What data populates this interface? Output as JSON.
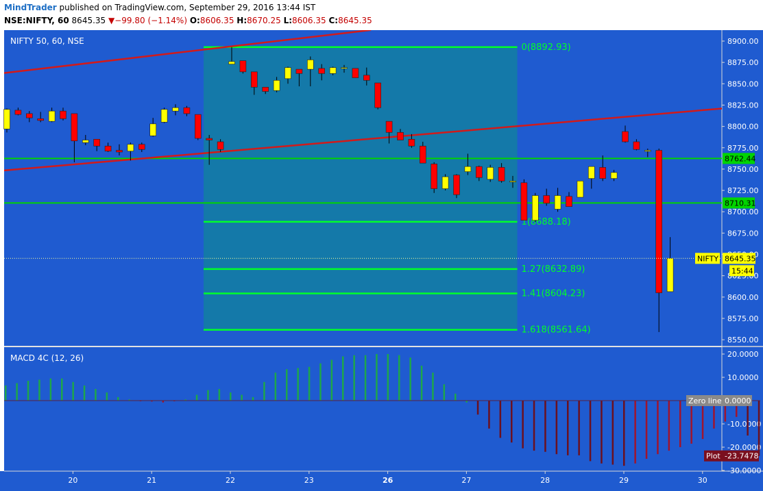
{
  "header": {
    "author": "MindTrader",
    "published": "published on TradingView.com, September 29, 2016 13:44 IST",
    "symbol": "NSE:NIFTY, 60",
    "last": "8645.35",
    "change_arrow": "▼",
    "change": "−99.80 (−1.14%)",
    "o_label": "O:",
    "o_value": "8606.35",
    "h_label": "H:",
    "h_value": "8670.25",
    "l_label": "L:",
    "l_value": "8606.35",
    "c_label": "C:",
    "c_value": "8645.35"
  },
  "colors": {
    "background": "#1f5bd0",
    "rectangle": "#1479a9",
    "up_candle": "#ffff00",
    "down_candle": "#ff0000",
    "fib": "#00ff2a",
    "hline": "#00d400",
    "channel": "#d21a1a",
    "macd_green": "#1ea64a",
    "macd_red": "#a0142e",
    "macd_darkred": "#6b1020"
  },
  "chart_data": [
    {
      "type": "candlestick",
      "title": "NIFTY 50, 60, NSE",
      "ylim": [
        8540,
        8910
      ],
      "yticks": [
        8550,
        8575,
        8600,
        8625,
        8650,
        8675,
        8700,
        8725,
        8750,
        8775,
        8800,
        8825,
        8850,
        8875,
        8900
      ],
      "ytick_labels": [
        "8550.00",
        "8575.00",
        "8600.00",
        "8625.00",
        "8650.00",
        "8675.00",
        "8700.00",
        "8725.00",
        "8750.00",
        "8775.00",
        "8800.00",
        "8825.00",
        "8850.00",
        "8875.00",
        "8900.00"
      ],
      "x_labels": [
        "20",
        "21",
        "22",
        "23",
        "26",
        "27",
        "28",
        "29",
        "30"
      ],
      "x_label_bar_index": [
        6,
        13,
        20,
        27,
        34,
        41,
        48,
        55,
        62
      ],
      "bold_x_label": "26",
      "candles": [
        {
          "o": 8797,
          "h": 8821,
          "l": 8793,
          "c": 8820
        },
        {
          "o": 8819,
          "h": 8822,
          "l": 8813,
          "c": 8814
        },
        {
          "o": 8815,
          "h": 8818,
          "l": 8805,
          "c": 8810
        },
        {
          "o": 8809,
          "h": 8817,
          "l": 8805,
          "c": 8807
        },
        {
          "o": 8806,
          "h": 8822,
          "l": 8805,
          "c": 8818
        },
        {
          "o": 8818,
          "h": 8822,
          "l": 8807,
          "c": 8809
        },
        {
          "o": 8815,
          "h": 8815,
          "l": 8758,
          "c": 8783
        },
        {
          "o": 8781,
          "h": 8790,
          "l": 8778,
          "c": 8784
        },
        {
          "o": 8785,
          "h": 8785,
          "l": 8771,
          "c": 8777
        },
        {
          "o": 8777,
          "h": 8781,
          "l": 8770,
          "c": 8771
        },
        {
          "o": 8772,
          "h": 8779,
          "l": 8766,
          "c": 8770
        },
        {
          "o": 8771,
          "h": 8781,
          "l": 8760,
          "c": 8779
        },
        {
          "o": 8779,
          "h": 8781,
          "l": 8770,
          "c": 8773
        },
        {
          "o": 8789,
          "h": 8810,
          "l": 8788,
          "c": 8803
        },
        {
          "o": 8805,
          "h": 8822,
          "l": 8804,
          "c": 8820
        },
        {
          "o": 8818,
          "h": 8826,
          "l": 8813,
          "c": 8822
        },
        {
          "o": 8822,
          "h": 8824,
          "l": 8812,
          "c": 8815
        },
        {
          "o": 8814,
          "h": 8814,
          "l": 8784,
          "c": 8786
        },
        {
          "o": 8786,
          "h": 8790,
          "l": 8755,
          "c": 8784
        },
        {
          "o": 8782,
          "h": 8785,
          "l": 8770,
          "c": 8773
        },
        {
          "o": 8873,
          "h": 8893,
          "l": 8873,
          "c": 8876
        },
        {
          "o": 8877,
          "h": 8877,
          "l": 8862,
          "c": 8864
        },
        {
          "o": 8864,
          "h": 8864,
          "l": 8837,
          "c": 8846
        },
        {
          "o": 8846,
          "h": 8846,
          "l": 8838,
          "c": 8841
        },
        {
          "o": 8842,
          "h": 8858,
          "l": 8840,
          "c": 8854
        },
        {
          "o": 8856,
          "h": 8870,
          "l": 8850,
          "c": 8869
        },
        {
          "o": 8867,
          "h": 8867,
          "l": 8847,
          "c": 8862
        },
        {
          "o": 8867,
          "h": 8882,
          "l": 8847,
          "c": 8878
        },
        {
          "o": 8868,
          "h": 8873,
          "l": 8854,
          "c": 8862
        },
        {
          "o": 8862,
          "h": 8870,
          "l": 8860,
          "c": 8869
        },
        {
          "o": 8868,
          "h": 8872,
          "l": 8863,
          "c": 8869
        },
        {
          "o": 8868,
          "h": 8868,
          "l": 8857,
          "c": 8857
        },
        {
          "o": 8860,
          "h": 8869,
          "l": 8848,
          "c": 8854
        },
        {
          "o": 8851,
          "h": 8851,
          "l": 8820,
          "c": 8822
        },
        {
          "o": 8806,
          "h": 8806,
          "l": 8780,
          "c": 8793
        },
        {
          "o": 8793,
          "h": 8797,
          "l": 8784,
          "c": 8784
        },
        {
          "o": 8785,
          "h": 8791,
          "l": 8775,
          "c": 8777
        },
        {
          "o": 8777,
          "h": 8782,
          "l": 8757,
          "c": 8757
        },
        {
          "o": 8756,
          "h": 8758,
          "l": 8722,
          "c": 8727
        },
        {
          "o": 8727,
          "h": 8744,
          "l": 8725,
          "c": 8741
        },
        {
          "o": 8743,
          "h": 8744,
          "l": 8716,
          "c": 8720
        },
        {
          "o": 8747,
          "h": 8768,
          "l": 8743,
          "c": 8753
        },
        {
          "o": 8753,
          "h": 8754,
          "l": 8736,
          "c": 8740
        },
        {
          "o": 8738,
          "h": 8755,
          "l": 8735,
          "c": 8752
        },
        {
          "o": 8752,
          "h": 8757,
          "l": 8734,
          "c": 8736
        },
        {
          "o": 8736,
          "h": 8742,
          "l": 8728,
          "c": 8736
        },
        {
          "o": 8734,
          "h": 8738,
          "l": 8690,
          "c": 8690
        },
        {
          "o": 8690,
          "h": 8722,
          "l": 8688,
          "c": 8719
        },
        {
          "o": 8719,
          "h": 8727,
          "l": 8707,
          "c": 8710
        },
        {
          "o": 8703,
          "h": 8728,
          "l": 8700,
          "c": 8719
        },
        {
          "o": 8718,
          "h": 8723,
          "l": 8706,
          "c": 8706
        },
        {
          "o": 8717,
          "h": 8736,
          "l": 8717,
          "c": 8736
        },
        {
          "o": 8739,
          "h": 8753,
          "l": 8727,
          "c": 8753
        },
        {
          "o": 8752,
          "h": 8766,
          "l": 8736,
          "c": 8739
        },
        {
          "o": 8739,
          "h": 8749,
          "l": 8736,
          "c": 8746
        },
        {
          "o": 8794,
          "h": 8801,
          "l": 8781,
          "c": 8782
        },
        {
          "o": 8782,
          "h": 8785,
          "l": 8772,
          "c": 8773
        },
        {
          "o": 8772,
          "h": 8774,
          "l": 8764,
          "c": 8772
        },
        {
          "o": 8772,
          "h": 8774,
          "l": 8605,
          "c": 8605
        },
        {
          "o": 8606.35,
          "h": 8670.25,
          "l": 8606.35,
          "c": 8645.35
        }
      ],
      "extra_wicks": [
        {
          "bar": 58,
          "low": 8559
        }
      ],
      "fib_levels": [
        {
          "label": "0(8892.93)",
          "value": 8892.93
        },
        {
          "label": "1(8688.18)",
          "value": 8688.18
        },
        {
          "label": "1.27(8632.89)",
          "value": 8632.89
        },
        {
          "label": "1.41(8604.23)",
          "value": 8604.23
        },
        {
          "label": "1.618(8561.64)",
          "value": 8561.64
        }
      ],
      "fib_zone": {
        "from_bar": 17.5,
        "to_bar": 45.4,
        "top": 8892.93,
        "bottom": 8561.64
      },
      "horizontal_lines": [
        {
          "value": 8762.44,
          "label": "8762.44"
        },
        {
          "value": 8710.31,
          "label": "8710.31"
        }
      ],
      "channel_lines": [
        {
          "from": {
            "bar": 0,
            "value": 8862
          },
          "to": {
            "bar": 33,
            "value": 8913
          }
        },
        {
          "from": {
            "bar": 0,
            "value": 8748
          },
          "to": {
            "bar": 66,
            "value": 8823
          }
        }
      ],
      "last_price": {
        "value": 8645.35,
        "tag": "NIFTY",
        "label": "8645.35",
        "countdown": "15:44"
      }
    },
    {
      "type": "bar",
      "title": "MACD 4C (12, 26)",
      "ylim": [
        -30,
        22
      ],
      "yticks": [
        20,
        10,
        -10,
        -20,
        -30
      ],
      "ytick_labels": [
        "20.0000",
        "10.0000",
        "-10.0000",
        "-20.0000",
        "-30.0000"
      ],
      "zero_line": {
        "tag": "Zero line",
        "value": "0.0000"
      },
      "plot_label": {
        "tag": "Plot",
        "value": "-23.7478"
      },
      "values": [
        6.5,
        7.5,
        8.5,
        9,
        9.5,
        9.5,
        8,
        6.5,
        5,
        3.5,
        1.5,
        0.5,
        -0.2,
        -0.4,
        -0.8,
        -0.3,
        0.5,
        2.5,
        4.5,
        5,
        3.5,
        2.5,
        1.5,
        8,
        12,
        13.5,
        14,
        14.5,
        16,
        17.5,
        19,
        19.5,
        19.5,
        20,
        20,
        19.5,
        18.5,
        15,
        12,
        7,
        3,
        -0.8,
        -6,
        -12,
        -16,
        -18,
        -20.5,
        -21.5,
        -22,
        -23,
        -23.5,
        -23.5,
        -26,
        -27,
        -27.5,
        -28,
        -27,
        -25,
        -23,
        -21.5,
        -20,
        -18.5,
        -16.5,
        -12,
        -9,
        -7,
        -15,
        -23.7478
      ],
      "colors": [
        "g",
        "g",
        "g",
        "g",
        "g",
        "g",
        "g",
        "g",
        "g",
        "g",
        "g",
        "g",
        "r",
        "r",
        "r",
        "r",
        "g",
        "g",
        "g",
        "g",
        "g",
        "g",
        "g",
        "g",
        "g",
        "g",
        "g",
        "g",
        "g",
        "g",
        "g",
        "g",
        "g",
        "g",
        "g",
        "g",
        "g",
        "g",
        "g",
        "g",
        "g",
        "g",
        "d",
        "d",
        "d",
        "d",
        "d",
        "d",
        "d",
        "d",
        "d",
        "d",
        "d",
        "d",
        "d",
        "d",
        "r",
        "r",
        "r",
        "r",
        "r",
        "r",
        "r",
        "r",
        "r",
        "r",
        "d",
        "d"
      ]
    }
  ]
}
